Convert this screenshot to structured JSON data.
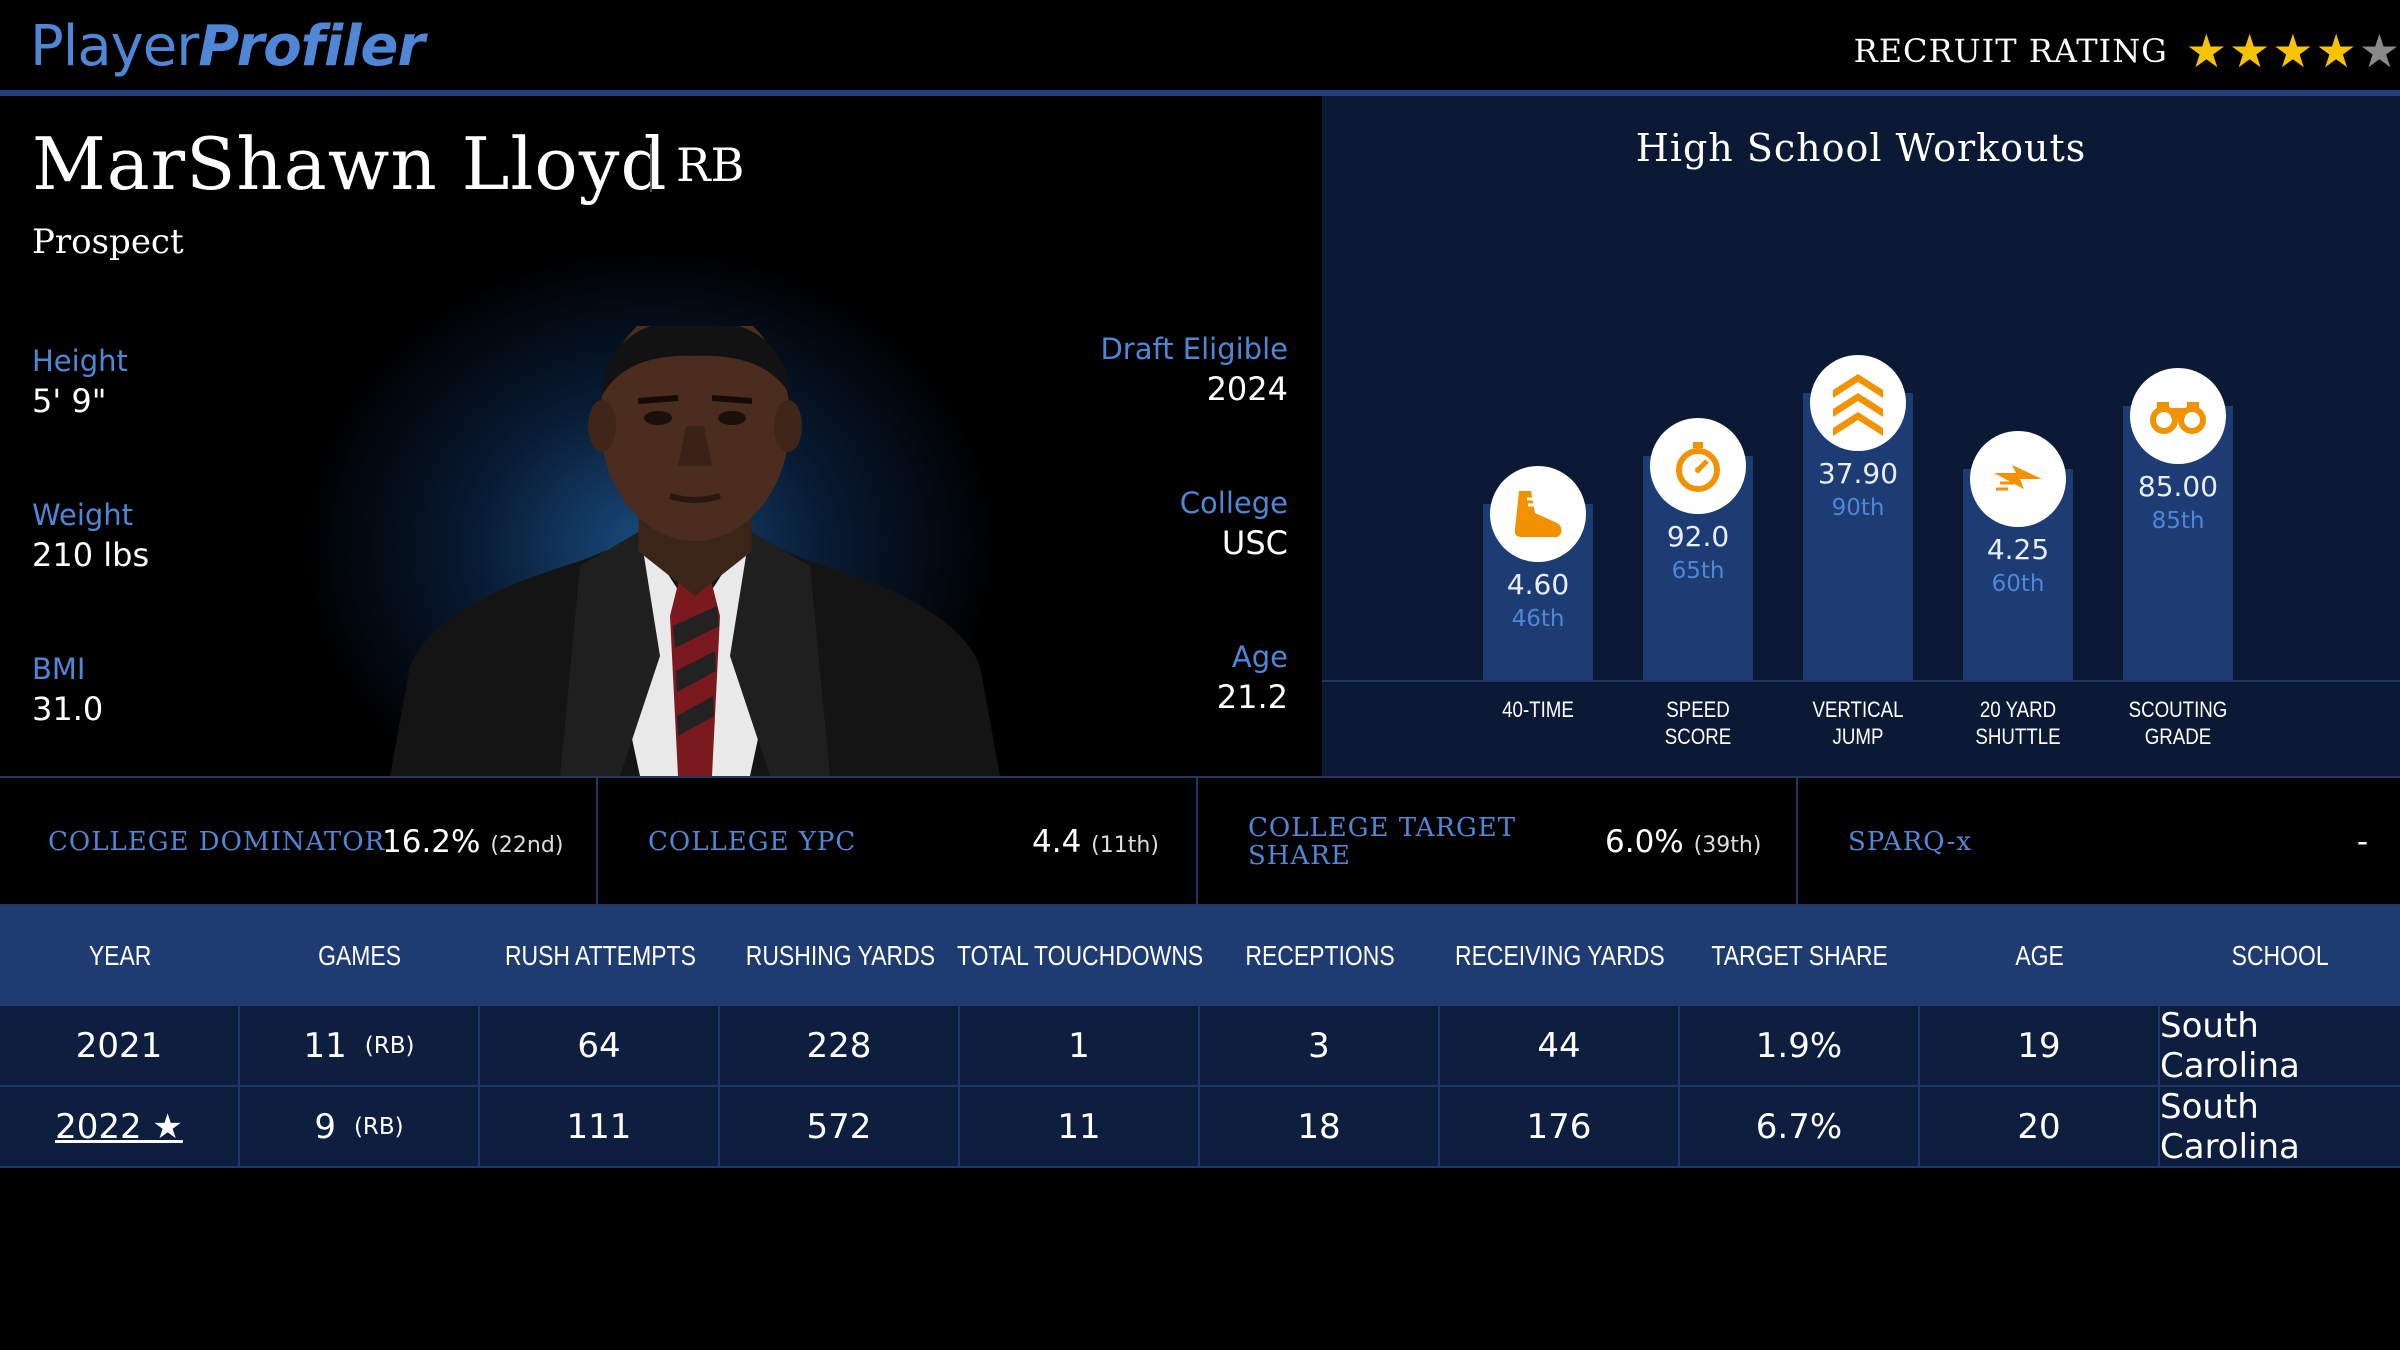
{
  "header": {
    "logo_part1": "Player",
    "logo_part2": "Profiler",
    "rating_label": "RECRUIT RATING",
    "stars_filled": 4,
    "stars_total": 5
  },
  "profile": {
    "name": "MarShawn Lloyd",
    "position": "RB",
    "status": "Prospect",
    "left_stats": [
      {
        "label": "Height",
        "value": "5' 9\""
      },
      {
        "label": "Weight",
        "value": "210 lbs"
      },
      {
        "label": "BMI",
        "value": "31.0"
      }
    ],
    "right_stats": [
      {
        "label": "Draft Eligible",
        "value": "2024"
      },
      {
        "label": "College",
        "value": "USC"
      },
      {
        "label": "Age",
        "value": "21.2"
      }
    ]
  },
  "workouts": {
    "title": "High School Workouts",
    "items": [
      {
        "value": "4.60",
        "percentile": "46th",
        "label_line1": "40-TIME",
        "label_line2": "",
        "icon": "running-shoe-icon",
        "pct_value": 46
      },
      {
        "value": "92.0",
        "percentile": "65th",
        "label_line1": "SPEED",
        "label_line2": "SCORE",
        "icon": "stopwatch-icon",
        "pct_value": 65
      },
      {
        "value": "37.90",
        "percentile": "90th",
        "label_line1": "VERTICAL",
        "label_line2": "JUMP",
        "icon": "chevrons-up-icon",
        "pct_value": 90
      },
      {
        "value": "4.25",
        "percentile": "60th",
        "label_line1": "20 YARD",
        "label_line2": "SHUTTLE",
        "icon": "lightning-icon",
        "pct_value": 60
      },
      {
        "value": "85.00",
        "percentile": "85th",
        "label_line1": "SCOUTING",
        "label_line2": "GRADE",
        "icon": "binoculars-icon",
        "pct_value": 85
      }
    ]
  },
  "metrics": [
    {
      "label_line1": "COLLEGE DOMINATOR",
      "label_line2": "",
      "value": "16.2%",
      "rank": "(22nd)"
    },
    {
      "label_line1": "COLLEGE YPC",
      "label_line2": "",
      "value": "4.4",
      "rank": "(11th)"
    },
    {
      "label_line1": "COLLEGE TARGET",
      "label_line2": "SHARE",
      "value": "6.0%",
      "rank": "(39th)"
    },
    {
      "label_line1": "SPARQ-x",
      "label_line2": "",
      "value": "-",
      "rank": ""
    }
  ],
  "table": {
    "headers": [
      "YEAR",
      "GAMES",
      "RUSH ATTEMPTS",
      "RUSHING YARDS",
      "TOTAL TOUCHDOWNS",
      "RECEPTIONS",
      "RECEIVING YARDS",
      "TARGET SHARE",
      "AGE",
      "SCHOOL"
    ],
    "rows": [
      {
        "year": "2021",
        "games": "11",
        "games_pos": "(RB)",
        "rush_att": "64",
        "rush_yds": "228",
        "td": "1",
        "rec": "3",
        "rec_yds": "44",
        "tgt_share": "1.9%",
        "age": "19",
        "school": "South Carolina"
      },
      {
        "year": "2022 ★",
        "games": "9",
        "games_pos": "(RB)",
        "rush_att": "111",
        "rush_yds": "572",
        "td": "11",
        "rec": "18",
        "rec_yds": "176",
        "tgt_share": "6.7%",
        "age": "20",
        "school": "South Carolina"
      }
    ]
  },
  "colors": {
    "accent_blue": "#4f86d6",
    "bar_blue": "#1d3c73",
    "star_gold": "#f7c300",
    "icon_orange": "#f39200"
  }
}
